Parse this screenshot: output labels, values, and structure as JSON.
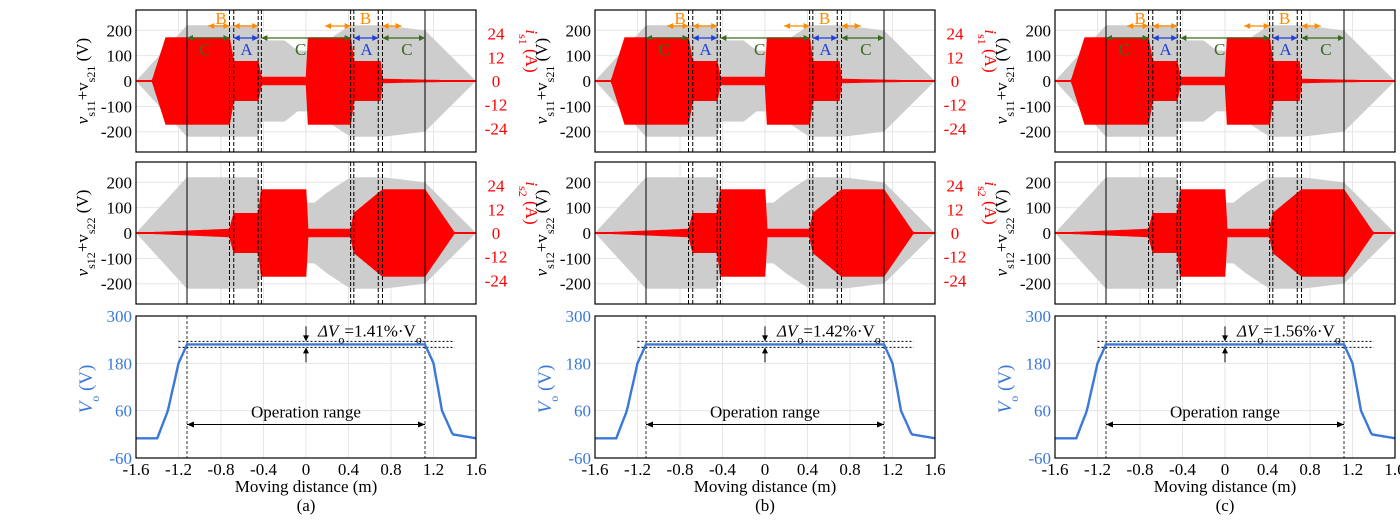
{
  "colors": {
    "voltage_band": "#cdcdcd",
    "current": "#ff0000",
    "vo_line": "#3c78d8",
    "vo_axis": "#3c78d8",
    "current_axis": "#ff0000",
    "label_A": "#1f3fe0",
    "label_B": "#ff8a00",
    "label_C": "#3a6a1f",
    "grid": "#e6e6e6"
  },
  "xaxis": {
    "label": "Moving distance (m)",
    "range": [
      -1.6,
      1.6
    ],
    "ticks": [
      "-1.6",
      "-1.2",
      "-0.8",
      "-0.4",
      "0",
      "0.4",
      "0.8",
      "1.2",
      "1.6"
    ]
  },
  "axes": {
    "top_ylabel": "v_s11+v_s21 (V)",
    "top_ylabel_main": "v",
    "top_ylabel_sub1": "s11",
    "top_ylabel_mid": "+v",
    "top_ylabel_sub2": "s21",
    "top_ylabel_unit": " (V)",
    "top_y2label_main": "i",
    "top_y2label_sub": "s1",
    "top_y2label_unit": " (A)",
    "mid_ylabel_main": "v",
    "mid_ylabel_sub1": "s12",
    "mid_ylabel_mid": "+v",
    "mid_ylabel_sub2": "s22",
    "mid_ylabel_unit": " (V)",
    "mid_y2label_main": "i",
    "mid_y2label_sub": "s2",
    "mid_y2label_unit": " (A)",
    "bot_ylabel_main": "V",
    "bot_ylabel_sub": "o",
    "bot_ylabel_unit": " (V)",
    "v_ticks": [
      "200",
      "100",
      "0",
      "-100",
      "-200"
    ],
    "i_ticks": [
      "24",
      "12",
      "0",
      "-12",
      "-24"
    ],
    "vo_ticks": [
      "300",
      "180",
      "60",
      "-60"
    ],
    "ylim_v": [
      -280,
      280
    ],
    "ylim_i": [
      -36,
      36
    ],
    "ylim_vo": [
      -60,
      300
    ]
  },
  "region_letters": {
    "A": "A",
    "B": "B",
    "C": "C"
  },
  "operation_label": "Operation range",
  "delta_prefix": "ΔV",
  "delta_sub": "o",
  "delta_suffix": "·V",
  "delta_suffix_sub": "o",
  "chart_data": [
    {
      "type": "line",
      "panel": "(a)",
      "title": "",
      "vo_flat": 228,
      "delta_pct": "=1.41%",
      "operation_range": [
        -1.12,
        1.12
      ],
      "vlines": [
        -1.12,
        -0.72,
        -0.68,
        -0.45,
        -0.42,
        0.42,
        0.45,
        0.68,
        0.72,
        1.12
      ],
      "voltage_envelope": {
        "x": [
          -1.6,
          -1.12,
          -0.72,
          -0.45,
          -0.42,
          -0.2,
          -0.08,
          0.08,
          0.2,
          0.42,
          0.45,
          0.72,
          1.12,
          1.6
        ],
        "top": [
          0,
          220,
          220,
          220,
          160,
          160,
          120,
          120,
          160,
          220,
          220,
          220,
          200,
          0
        ]
      },
      "i_s1": {
        "x": [
          -1.45,
          -1.32,
          -0.72,
          -0.68,
          -0.45,
          -0.42,
          0.0,
          0.02,
          0.42,
          0.45,
          0.7,
          0.72,
          1.6
        ],
        "amp": [
          0,
          22,
          22,
          10,
          10,
          2,
          2,
          22,
          22,
          10,
          10,
          1,
          0
        ]
      },
      "i_s2": {
        "x": [
          -1.6,
          -0.72,
          -0.68,
          -0.45,
          -0.42,
          0.0,
          0.02,
          0.42,
          0.45,
          0.72,
          1.12,
          1.4
        ],
        "amp": [
          0,
          2,
          10,
          10,
          22,
          22,
          2,
          2,
          10,
          22,
          22,
          0
        ]
      },
      "vo": {
        "x": [
          -1.6,
          -1.4,
          -1.3,
          -1.2,
          -1.12,
          1.12,
          1.2,
          1.28,
          1.38,
          1.6
        ],
        "y": [
          -10,
          -10,
          60,
          180,
          228,
          228,
          180,
          60,
          0,
          -10
        ]
      }
    },
    {
      "type": "line",
      "panel": "(b)",
      "title": "",
      "vo_flat": 228,
      "delta_pct": "=1.42%",
      "operation_range": [
        -1.12,
        1.12
      ],
      "vlines": [
        -1.12,
        -0.72,
        -0.68,
        -0.45,
        -0.42,
        0.42,
        0.45,
        0.68,
        0.72,
        1.12
      ],
      "voltage_envelope": {
        "x": [
          -1.6,
          -1.12,
          -0.72,
          -0.45,
          -0.42,
          -0.2,
          -0.08,
          0.08,
          0.2,
          0.42,
          0.45,
          0.72,
          1.12,
          1.6
        ],
        "top": [
          0,
          220,
          220,
          220,
          160,
          160,
          120,
          120,
          160,
          220,
          220,
          220,
          200,
          0
        ]
      },
      "i_s1": {
        "x": [
          -1.45,
          -1.32,
          -0.72,
          -0.68,
          -0.45,
          -0.42,
          0.0,
          0.02,
          0.42,
          0.45,
          0.7,
          0.72,
          1.6
        ],
        "amp": [
          0,
          22,
          22,
          10,
          10,
          2,
          2,
          22,
          22,
          10,
          10,
          1,
          0
        ]
      },
      "i_s2": {
        "x": [
          -1.6,
          -0.72,
          -0.68,
          -0.45,
          -0.42,
          0.0,
          0.02,
          0.42,
          0.45,
          0.72,
          1.12,
          1.4
        ],
        "amp": [
          0,
          2,
          10,
          10,
          22,
          22,
          2,
          2,
          10,
          22,
          22,
          0
        ]
      },
      "vo": {
        "x": [
          -1.6,
          -1.4,
          -1.3,
          -1.2,
          -1.12,
          1.12,
          1.2,
          1.28,
          1.38,
          1.6
        ],
        "y": [
          -10,
          -10,
          60,
          180,
          228,
          228,
          180,
          60,
          0,
          -10
        ]
      }
    },
    {
      "type": "line",
      "panel": "(c)",
      "title": "",
      "vo_flat": 228,
      "delta_pct": "=1.56%",
      "operation_range": [
        -1.12,
        1.12
      ],
      "vlines": [
        -1.12,
        -0.72,
        -0.68,
        -0.45,
        -0.42,
        0.42,
        0.45,
        0.68,
        0.72,
        1.12
      ],
      "voltage_envelope": {
        "x": [
          -1.6,
          -1.12,
          -0.72,
          -0.45,
          -0.42,
          -0.2,
          -0.08,
          0.08,
          0.2,
          0.42,
          0.45,
          0.72,
          1.12,
          1.6
        ],
        "top": [
          0,
          220,
          220,
          220,
          160,
          160,
          120,
          120,
          160,
          220,
          220,
          220,
          200,
          0
        ]
      },
      "i_s1": {
        "x": [
          -1.45,
          -1.32,
          -0.72,
          -0.68,
          -0.45,
          -0.42,
          0.0,
          0.02,
          0.42,
          0.45,
          0.7,
          0.72,
          1.6
        ],
        "amp": [
          0,
          22,
          22,
          10,
          10,
          2,
          2,
          22,
          22,
          10,
          10,
          1,
          0
        ]
      },
      "i_s2": {
        "x": [
          -1.6,
          -0.72,
          -0.68,
          -0.45,
          -0.42,
          0.0,
          0.02,
          0.42,
          0.45,
          0.72,
          1.12,
          1.4
        ],
        "amp": [
          0,
          2,
          10,
          10,
          22,
          22,
          2,
          2,
          10,
          22,
          22,
          0
        ]
      },
      "vo": {
        "x": [
          -1.6,
          -1.4,
          -1.3,
          -1.2,
          -1.12,
          1.12,
          1.2,
          1.28,
          1.38,
          1.6
        ],
        "y": [
          -10,
          -10,
          60,
          180,
          228,
          228,
          180,
          60,
          0,
          -10
        ]
      }
    }
  ]
}
